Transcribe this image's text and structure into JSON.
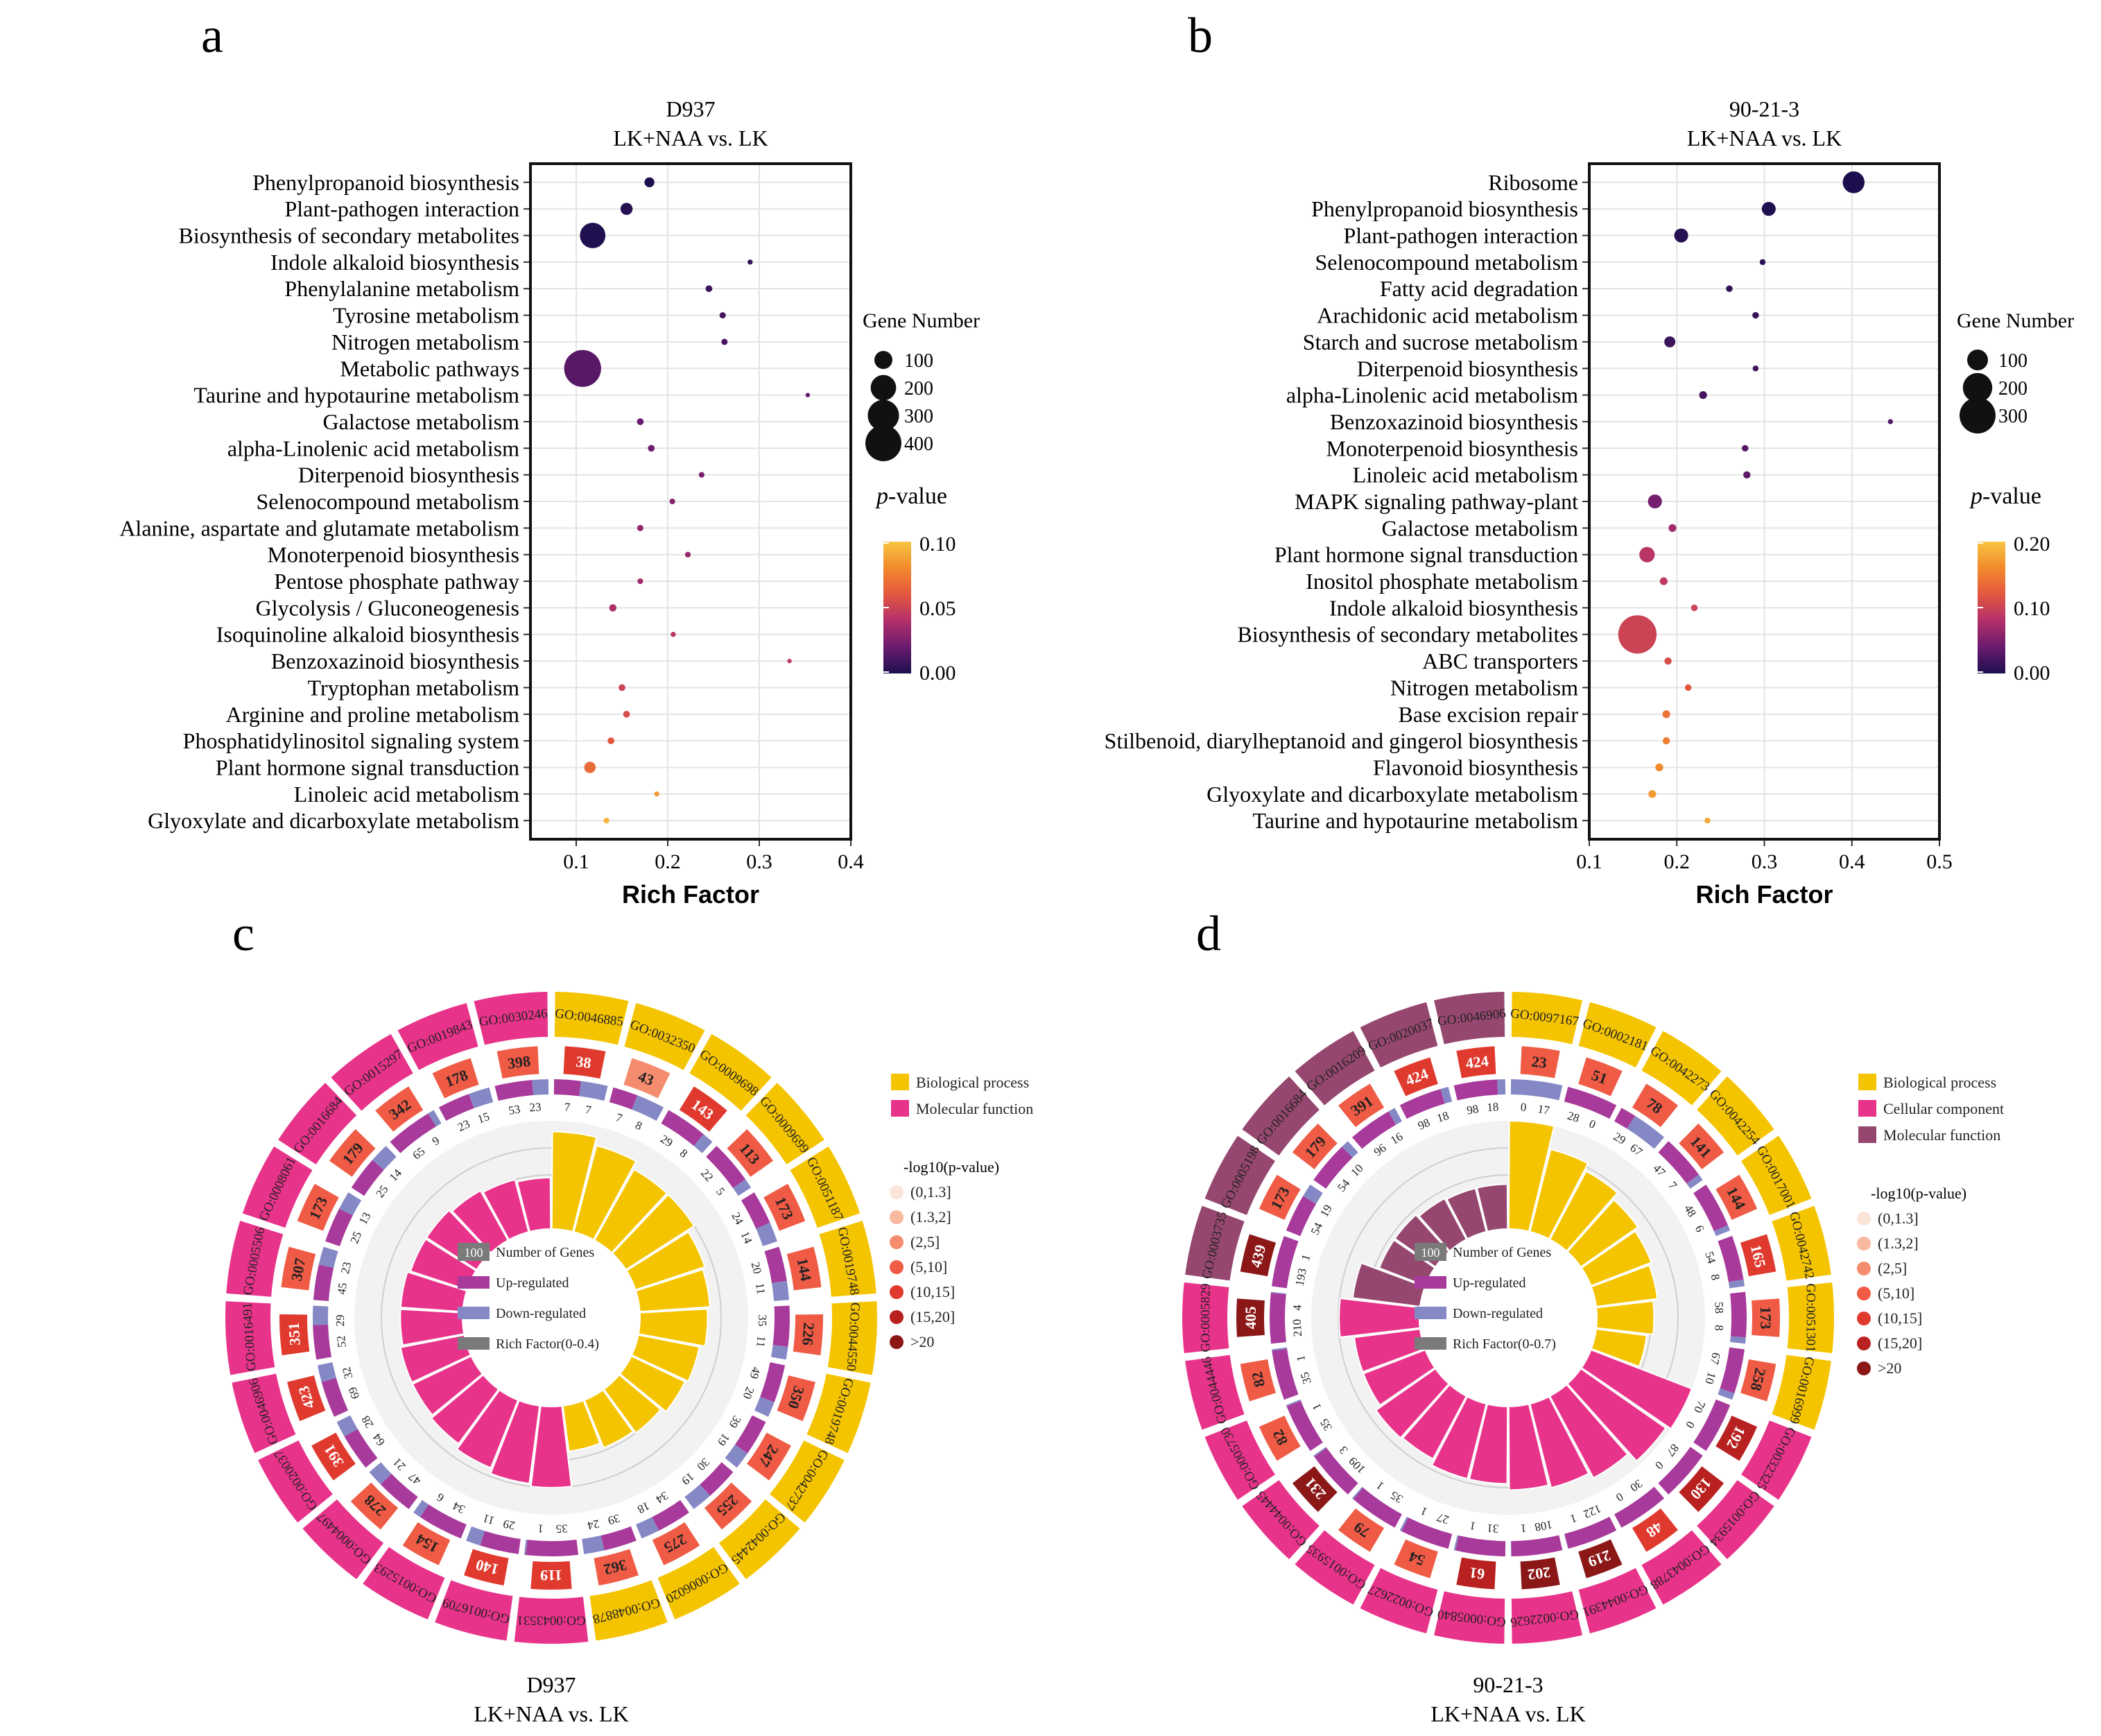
{
  "chart_data": [
    {
      "panel": "a",
      "type": "scatter",
      "title": [
        "D937",
        "LK+NAA vs. LK"
      ],
      "xlabel": "Rich Factor",
      "xlim": [
        0.05,
        0.4
      ],
      "xticks": [
        "0.1",
        "0.2",
        "0.3",
        "0.4"
      ],
      "size_legend": {
        "title": "Gene Number",
        "values": [
          100,
          200,
          300,
          400
        ]
      },
      "color_legend": {
        "title_italic": "p",
        "title_rest": "-value",
        "range": [
          0,
          0.1
        ],
        "ticks": [
          "0.10",
          "0.05",
          "0.00"
        ]
      },
      "points": [
        {
          "pathway": "Phenylpropanoid biosynthesis",
          "rich": 0.18,
          "genes": 30,
          "p": 0.0
        },
        {
          "pathway": "Plant-pathogen interaction",
          "rich": 0.155,
          "genes": 45,
          "p": 0.002
        },
        {
          "pathway": "Biosynthesis of secondary metabolites",
          "rich": 0.118,
          "genes": 200,
          "p": 0.001
        },
        {
          "pathway": "Indole alkaloid biosynthesis",
          "rich": 0.29,
          "genes": 8,
          "p": 0.005
        },
        {
          "pathway": "Phenylalanine metabolism",
          "rich": 0.245,
          "genes": 14,
          "p": 0.008
        },
        {
          "pathway": "Tyrosine metabolism",
          "rich": 0.26,
          "genes": 12,
          "p": 0.01
        },
        {
          "pathway": "Nitrogen metabolism",
          "rich": 0.262,
          "genes": 12,
          "p": 0.012
        },
        {
          "pathway": "Metabolic pathways",
          "rich": 0.107,
          "genes": 420,
          "p": 0.015
        },
        {
          "pathway": "Taurine and hypotaurine metabolism",
          "rich": 0.353,
          "genes": 6,
          "p": 0.018
        },
        {
          "pathway": "Galactose metabolism",
          "rich": 0.17,
          "genes": 14,
          "p": 0.02
        },
        {
          "pathway": "alpha-Linolenic acid metabolism",
          "rich": 0.182,
          "genes": 14,
          "p": 0.022
        },
        {
          "pathway": "Diterpenoid biosynthesis",
          "rich": 0.237,
          "genes": 10,
          "p": 0.025
        },
        {
          "pathway": "Selenocompound metabolism",
          "rich": 0.205,
          "genes": 10,
          "p": 0.028
        },
        {
          "pathway": "Alanine, aspartate and glutamate metabolism",
          "rich": 0.17,
          "genes": 12,
          "p": 0.03
        },
        {
          "pathway": "Monoterpenoid biosynthesis",
          "rich": 0.222,
          "genes": 10,
          "p": 0.032
        },
        {
          "pathway": "Pentose phosphate pathway",
          "rich": 0.17,
          "genes": 10,
          "p": 0.035
        },
        {
          "pathway": "Glycolysis / Gluconeogenesis",
          "rich": 0.14,
          "genes": 16,
          "p": 0.038
        },
        {
          "pathway": "Isoquinoline alkaloid biosynthesis",
          "rich": 0.206,
          "genes": 8,
          "p": 0.042
        },
        {
          "pathway": "Benzoxazinoid biosynthesis",
          "rich": 0.333,
          "genes": 6,
          "p": 0.045
        },
        {
          "pathway": "Tryptophan metabolism",
          "rich": 0.15,
          "genes": 14,
          "p": 0.05
        },
        {
          "pathway": "Arginine and proline metabolism",
          "rich": 0.155,
          "genes": 14,
          "p": 0.055
        },
        {
          "pathway": "Phosphatidylinositol signaling system",
          "rich": 0.138,
          "genes": 14,
          "p": 0.06
        },
        {
          "pathway": "Plant hormone signal transduction",
          "rich": 0.115,
          "genes": 40,
          "p": 0.068
        },
        {
          "pathway": "Linoleic acid metabolism",
          "rich": 0.188,
          "genes": 8,
          "p": 0.085
        },
        {
          "pathway": "Glyoxylate and dicarboxylate metabolism",
          "rich": 0.133,
          "genes": 10,
          "p": 0.095
        }
      ]
    },
    {
      "panel": "b",
      "type": "scatter",
      "title": [
        "90-21-3",
        "LK+NAA vs. LK"
      ],
      "xlabel": "Rich Factor",
      "xlim": [
        0.1,
        0.5
      ],
      "xticks": [
        "0.1",
        "0.2",
        "0.3",
        "0.4",
        "0.5"
      ],
      "size_legend": {
        "title": "Gene Number",
        "values": [
          100,
          200,
          300
        ]
      },
      "color_legend": {
        "title_italic": "p",
        "title_rest": "-value",
        "range": [
          0,
          0.2
        ],
        "ticks": [
          "0.20",
          "0.10",
          "0.00"
        ]
      },
      "points": [
        {
          "pathway": "Ribosome",
          "rich": 0.402,
          "genes": 110,
          "p": 0.0
        },
        {
          "pathway": "Phenylpropanoid biosynthesis",
          "rich": 0.305,
          "genes": 45,
          "p": 0.002
        },
        {
          "pathway": "Plant-pathogen interaction",
          "rich": 0.205,
          "genes": 45,
          "p": 0.004
        },
        {
          "pathway": "Selenocompound metabolism",
          "rich": 0.298,
          "genes": 8,
          "p": 0.008
        },
        {
          "pathway": "Fatty acid degradation",
          "rich": 0.26,
          "genes": 10,
          "p": 0.01
        },
        {
          "pathway": "Arachidonic acid metabolism",
          "rich": 0.29,
          "genes": 10,
          "p": 0.012
        },
        {
          "pathway": "Starch and sucrose metabolism",
          "rich": 0.192,
          "genes": 28,
          "p": 0.015
        },
        {
          "pathway": "Diterpenoid biosynthesis",
          "rich": 0.29,
          "genes": 8,
          "p": 0.018
        },
        {
          "pathway": "alpha-Linolenic acid metabolism",
          "rich": 0.23,
          "genes": 14,
          "p": 0.02
        },
        {
          "pathway": "Benzoxazinoid biosynthesis",
          "rich": 0.444,
          "genes": 6,
          "p": 0.025
        },
        {
          "pathway": "Monoterpenoid biosynthesis",
          "rich": 0.278,
          "genes": 10,
          "p": 0.028
        },
        {
          "pathway": "Linoleic acid metabolism",
          "rich": 0.28,
          "genes": 12,
          "p": 0.032
        },
        {
          "pathway": "MAPK signaling pathway-plant",
          "rich": 0.175,
          "genes": 45,
          "p": 0.045
        },
        {
          "pathway": "Galactose metabolism",
          "rich": 0.195,
          "genes": 14,
          "p": 0.07
        },
        {
          "pathway": "Plant hormone signal transduction",
          "rich": 0.166,
          "genes": 55,
          "p": 0.085
        },
        {
          "pathway": "Inositol phosphate metabolism",
          "rich": 0.185,
          "genes": 14,
          "p": 0.09
        },
        {
          "pathway": "Indole alkaloid biosynthesis",
          "rich": 0.22,
          "genes": 10,
          "p": 0.1
        },
        {
          "pathway": "Biosynthesis of secondary metabolites",
          "rich": 0.155,
          "genes": 340,
          "p": 0.1
        },
        {
          "pathway": "ABC transporters",
          "rich": 0.19,
          "genes": 12,
          "p": 0.11
        },
        {
          "pathway": "Nitrogen metabolism",
          "rich": 0.213,
          "genes": 10,
          "p": 0.12
        },
        {
          "pathway": "Base excision repair",
          "rich": 0.188,
          "genes": 14,
          "p": 0.14
        },
        {
          "pathway": "Stilbenoid, diarylheptanoid and gingerol biosynthesis",
          "rich": 0.188,
          "genes": 12,
          "p": 0.15
        },
        {
          "pathway": "Flavonoid biosynthesis",
          "rich": 0.18,
          "genes": 14,
          "p": 0.16
        },
        {
          "pathway": "Glyoxylate and dicarboxylate metabolism",
          "rich": 0.172,
          "genes": 14,
          "p": 0.17
        },
        {
          "pathway": "Taurine and hypotaurine metabolism",
          "rich": 0.235,
          "genes": 8,
          "p": 0.18
        }
      ]
    },
    {
      "panel": "c",
      "type": "circular-bar",
      "caption": [
        "D937",
        "LK+NAA vs. LK"
      ],
      "category_legend": [
        {
          "label": "Biological process",
          "color": "#f5c400"
        },
        {
          "label": "Molecular function",
          "color": "#e8338a"
        }
      ],
      "center_legend": [
        "Number of Genes",
        "Up-regulated",
        "Down-regulated",
        "Rich Factor(0-0.4)"
      ],
      "center_legend_badge": "100",
      "pval_legend_title": "-log10(p-value)",
      "pval_bins": [
        "(0,1.3]",
        "(1.3,2]",
        "(2,5]",
        "(5,10]",
        "(10,15]",
        "(15,20]",
        ">20"
      ],
      "terms": [
        {
          "go": "GO:0046885",
          "cat": "BP",
          "count": 38,
          "up": 7,
          "down": 7,
          "rich": 0.36,
          "bin": 4
        },
        {
          "go": "GO:0032350",
          "cat": "BP",
          "count": 43,
          "up": 7,
          "down": 8,
          "rich": 0.33,
          "bin": 2
        },
        {
          "go": "GO:0009698",
          "cat": "BP",
          "count": 143,
          "up": 29,
          "down": 8,
          "rich": 0.3,
          "bin": 4
        },
        {
          "go": "GO:0009699",
          "cat": "BP",
          "count": 113,
          "up": 22,
          "down": 5,
          "rich": 0.3,
          "bin": 3
        },
        {
          "go": "GO:0051187",
          "cat": "BP",
          "count": 173,
          "up": 24,
          "down": 14,
          "rich": 0.27,
          "bin": 3
        },
        {
          "go": "GO:0019748",
          "cat": "BP",
          "count": 144,
          "up": 20,
          "down": 11,
          "rich": 0.26,
          "bin": 3
        },
        {
          "go": "GO:0044550",
          "cat": "BP",
          "count": 226,
          "up": 35,
          "down": 11,
          "rich": 0.25,
          "bin": 3
        },
        {
          "go": "GO:0019748",
          "cat": "BP",
          "count": 350,
          "up": 49,
          "down": 20,
          "rich": 0.23,
          "bin": 3
        },
        {
          "go": "GO:0042737",
          "cat": "BP",
          "count": 247,
          "up": 39,
          "down": 19,
          "rich": 0.22,
          "bin": 3
        },
        {
          "go": "GO:0042445",
          "cat": "BP",
          "count": 255,
          "up": 30,
          "down": 19,
          "rich": 0.2,
          "bin": 3
        },
        {
          "go": "GO:0006020",
          "cat": "BP",
          "count": 275,
          "up": 34,
          "down": 18,
          "rich": 0.19,
          "bin": 3
        },
        {
          "go": "GO:0048878",
          "cat": "BP",
          "count": 362,
          "up": 39,
          "down": 24,
          "rich": 0.17,
          "bin": 3
        },
        {
          "go": "GO:0043531",
          "cat": "MF",
          "count": 119,
          "up": 35,
          "down": 1,
          "rich": 0.3,
          "bin": 4
        },
        {
          "go": "GO:0016709",
          "cat": "MF",
          "count": 140,
          "up": 29,
          "down": 11,
          "rich": 0.29,
          "bin": 4
        },
        {
          "go": "GO:0015293",
          "cat": "MF",
          "count": 154,
          "up": 34,
          "down": 6,
          "rich": 0.27,
          "bin": 3
        },
        {
          "go": "GO:0004497",
          "cat": "MF",
          "count": 278,
          "up": 47,
          "down": 21,
          "rich": 0.25,
          "bin": 3
        },
        {
          "go": "GO:0020037",
          "cat": "MF",
          "count": 391,
          "up": 64,
          "down": 28,
          "rich": 0.24,
          "bin": 4
        },
        {
          "go": "GO:0046906",
          "cat": "MF",
          "count": 423,
          "up": 69,
          "down": 32,
          "rich": 0.24,
          "bin": 4
        },
        {
          "go": "GO:0016491",
          "cat": "MF",
          "count": 351,
          "up": 52,
          "down": 29,
          "rich": 0.23,
          "bin": 4
        },
        {
          "go": "GO:0005506",
          "cat": "MF",
          "count": 307,
          "up": 45,
          "down": 23,
          "rich": 0.23,
          "bin": 3
        },
        {
          "go": "GO:0008061",
          "cat": "MF",
          "count": 173,
          "up": 25,
          "down": 13,
          "rich": 0.22,
          "bin": 3
        },
        {
          "go": "GO:0016684",
          "cat": "MF",
          "count": 179,
          "up": 25,
          "down": 14,
          "rich": 0.22,
          "bin": 3
        },
        {
          "go": "GO:0015297",
          "cat": "MF",
          "count": 342,
          "up": 65,
          "down": 9,
          "rich": 0.21,
          "bin": 3
        },
        {
          "go": "GO:0019843",
          "cat": "MF",
          "count": 178,
          "up": 23,
          "down": 15,
          "rich": 0.2,
          "bin": 3
        },
        {
          "go": "GO:0030246",
          "cat": "MF",
          "count": 398,
          "up": 53,
          "down": 23,
          "rich": 0.19,
          "bin": 3
        }
      ]
    },
    {
      "panel": "d",
      "type": "circular-bar",
      "caption": [
        "90-21-3",
        "LK+NAA vs. LK"
      ],
      "category_legend": [
        {
          "label": "Biological process",
          "color": "#f5c400"
        },
        {
          "label": "Cellular component",
          "color": "#e8338a"
        },
        {
          "label": "Molecular function",
          "color": "#96476f"
        }
      ],
      "center_legend": [
        "Number of Genes",
        "Up-regulated",
        "Down-regulated",
        "Rich Factor(0-0.7)"
      ],
      "center_legend_badge": "100",
      "pval_legend_title": "-log10(p-value)",
      "pval_bins": [
        "(0,1.3]",
        "(1.3,2]",
        "(2,5]",
        "(5,10]",
        "(10,15]",
        "(15,20]",
        ">20"
      ],
      "terms": [
        {
          "go": "GO:0097167",
          "cat": "BP",
          "count": 23,
          "up": 0,
          "down": 17,
          "rich": 0.7,
          "bin": 3
        },
        {
          "go": "GO:0002181",
          "cat": "BP",
          "count": 51,
          "up": 28,
          "down": 0,
          "rich": 0.55,
          "bin": 3
        },
        {
          "go": "GO:0042273",
          "cat": "BP",
          "count": 78,
          "up": 29,
          "down": 67,
          "rich": 0.5,
          "bin": 3
        },
        {
          "go": "GO:0042254",
          "cat": "BP",
          "count": 141,
          "up": 47,
          "down": 7,
          "rich": 0.45,
          "bin": 3
        },
        {
          "go": "GO:0017001",
          "cat": "BP",
          "count": 144,
          "up": 48,
          "down": 6,
          "rich": 0.42,
          "bin": 3
        },
        {
          "go": "GO:0042742",
          "cat": "BP",
          "count": 165,
          "up": 54,
          "down": 8,
          "rich": 0.4,
          "bin": 4
        },
        {
          "go": "GO:0051301",
          "cat": "BP",
          "count": 173,
          "up": 58,
          "down": 8,
          "rich": 0.37,
          "bin": 3
        },
        {
          "go": "GO:0016999",
          "cat": "BP",
          "count": 258,
          "up": 67,
          "down": 10,
          "rich": 0.33,
          "bin": 3
        },
        {
          "go": "GO:0032325",
          "cat": "CC",
          "count": 192,
          "up": 70,
          "down": 0,
          "rich": 0.7,
          "bin": 5
        },
        {
          "go": "GO:0015934",
          "cat": "CC",
          "count": 130,
          "up": 87,
          "down": 0,
          "rich": 0.67,
          "bin": 5
        },
        {
          "go": "GO:0043788",
          "cat": "CC",
          "count": 48,
          "up": 30,
          "down": 0,
          "rich": 0.6,
          "bin": 4
        },
        {
          "go": "GO:0044391",
          "cat": "CC",
          "count": 219,
          "up": 122,
          "down": 1,
          "rich": 0.56,
          "bin": 6
        },
        {
          "go": "GO:0022626",
          "cat": "CC",
          "count": 202,
          "up": 108,
          "down": 1,
          "rich": 0.54,
          "bin": 6
        },
        {
          "go": "GO:0005840",
          "cat": "CC",
          "count": 61,
          "up": 31,
          "down": 1,
          "rich": 0.5,
          "bin": 5
        },
        {
          "go": "GO:0022627",
          "cat": "CC",
          "count": 54,
          "up": 27,
          "down": 1,
          "rich": 0.5,
          "bin": 3
        },
        {
          "go": "GO:0015935",
          "cat": "CC",
          "count": 79,
          "up": 35,
          "down": 1,
          "rich": 0.46,
          "bin": 3
        },
        {
          "go": "GO:0044445",
          "cat": "CC",
          "count": 231,
          "up": 109,
          "down": 3,
          "rich": 0.47,
          "bin": 6
        },
        {
          "go": "GO:0005730",
          "cat": "CC",
          "count": 82,
          "up": 35,
          "down": 1,
          "rich": 0.43,
          "bin": 3
        },
        {
          "go": "GO:0044446",
          "cat": "CC",
          "count": 82,
          "up": 35,
          "down": 1,
          "rich": 0.43,
          "bin": 3
        },
        {
          "go": "GO:0005829",
          "cat": "CC",
          "count": 405,
          "up": 210,
          "down": 4,
          "rich": 0.52,
          "bin": 6
        },
        {
          "go": "GO:0003735",
          "cat": "MF",
          "count": 439,
          "up": 193,
          "down": 1,
          "rich": 0.44,
          "bin": 6
        },
        {
          "go": "GO:0005198",
          "cat": "MF",
          "count": 173,
          "up": 54,
          "down": 19,
          "rich": 0.32,
          "bin": 3
        },
        {
          "go": "GO:0016684",
          "cat": "MF",
          "count": 179,
          "up": 54,
          "down": 10,
          "rich": 0.32,
          "bin": 3
        },
        {
          "go": "GO:0016209",
          "cat": "MF",
          "count": 391,
          "up": 96,
          "down": 16,
          "rich": 0.3,
          "bin": 3
        },
        {
          "go": "GO:0020037",
          "cat": "MF",
          "count": 424,
          "up": 98,
          "down": 18,
          "rich": 0.29,
          "bin": 4
        },
        {
          "go": "GO:0046906",
          "cat": "MF",
          "count": 424,
          "up": 98,
          "down": 18,
          "rich": 0.29,
          "bin": 4
        }
      ]
    }
  ],
  "panel_letters": [
    "a",
    "b",
    "c",
    "d"
  ],
  "colors": {
    "bp": "#f5c400",
    "cc": "#e8338a",
    "mf_c": "#e8338a",
    "mf_d": "#96476f",
    "up": "#a83a9b",
    "down": "#8489c6",
    "pval_bins": [
      "#fbe4d8",
      "#f8b9a0",
      "#f58c6f",
      "#ef5b45",
      "#e03a2f",
      "#b8211f",
      "#8b1717"
    ]
  }
}
